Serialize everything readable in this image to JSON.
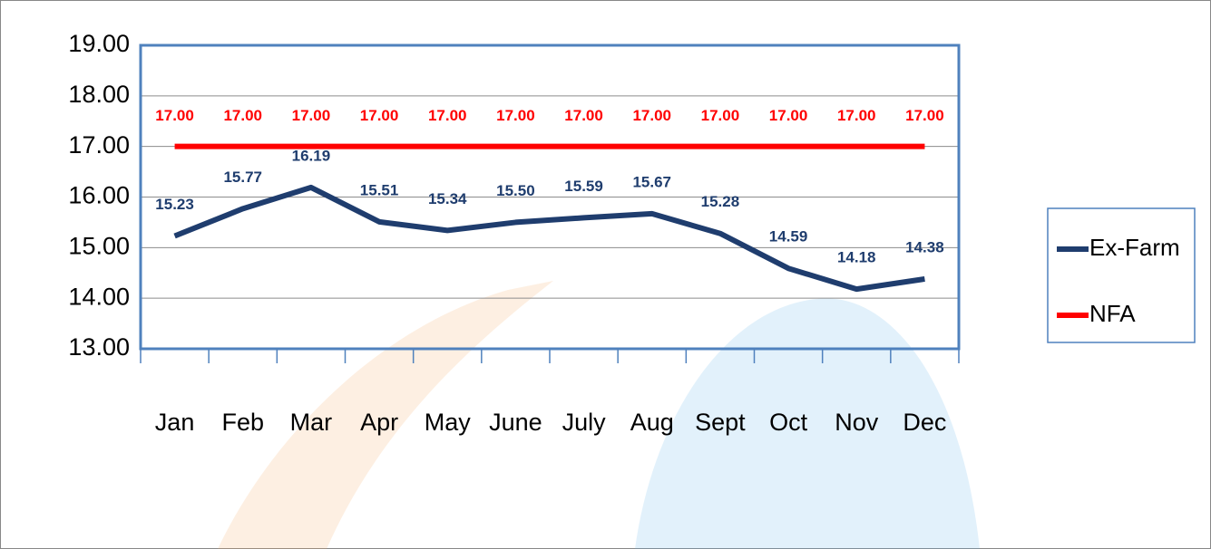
{
  "chart_data": {
    "type": "line",
    "categories": [
      "Jan",
      "Feb",
      "Mar",
      "Apr",
      "May",
      "June",
      "July",
      "Aug",
      "Sept",
      "Oct",
      "Nov",
      "Dec"
    ],
    "series": [
      {
        "name": "Ex-Farm",
        "color": "#1f3d6e",
        "values": [
          15.23,
          15.77,
          16.19,
          15.51,
          15.34,
          15.5,
          15.59,
          15.67,
          15.28,
          14.59,
          14.18,
          14.38
        ],
        "value_labels": [
          "15.23",
          "15.77",
          "16.19",
          "15.51",
          "15.34",
          "15.50",
          "15.59",
          "15.67",
          "15.28",
          "14.59",
          "14.18",
          "14.38"
        ]
      },
      {
        "name": "NFA",
        "color": "#ff0000",
        "values": [
          17,
          17,
          17,
          17,
          17,
          17,
          17,
          17,
          17,
          17,
          17,
          17
        ],
        "value_labels": [
          "17.00",
          "17.00",
          "17.00",
          "17.00",
          "17.00",
          "17.00",
          "17.00",
          "17.00",
          "17.00",
          "17.00",
          "17.00",
          "17.00"
        ]
      }
    ],
    "ylim": [
      13,
      19
    ],
    "yticks": [
      {
        "value": 13,
        "label": "13.00"
      },
      {
        "value": 14,
        "label": "14.00"
      },
      {
        "value": 15,
        "label": "15.00"
      },
      {
        "value": 16,
        "label": "16.00"
      },
      {
        "value": 17,
        "label": "17.00"
      },
      {
        "value": 18,
        "label": "18.00"
      },
      {
        "value": 19,
        "label": "19.00"
      }
    ],
    "grid": true,
    "legend": "right"
  }
}
